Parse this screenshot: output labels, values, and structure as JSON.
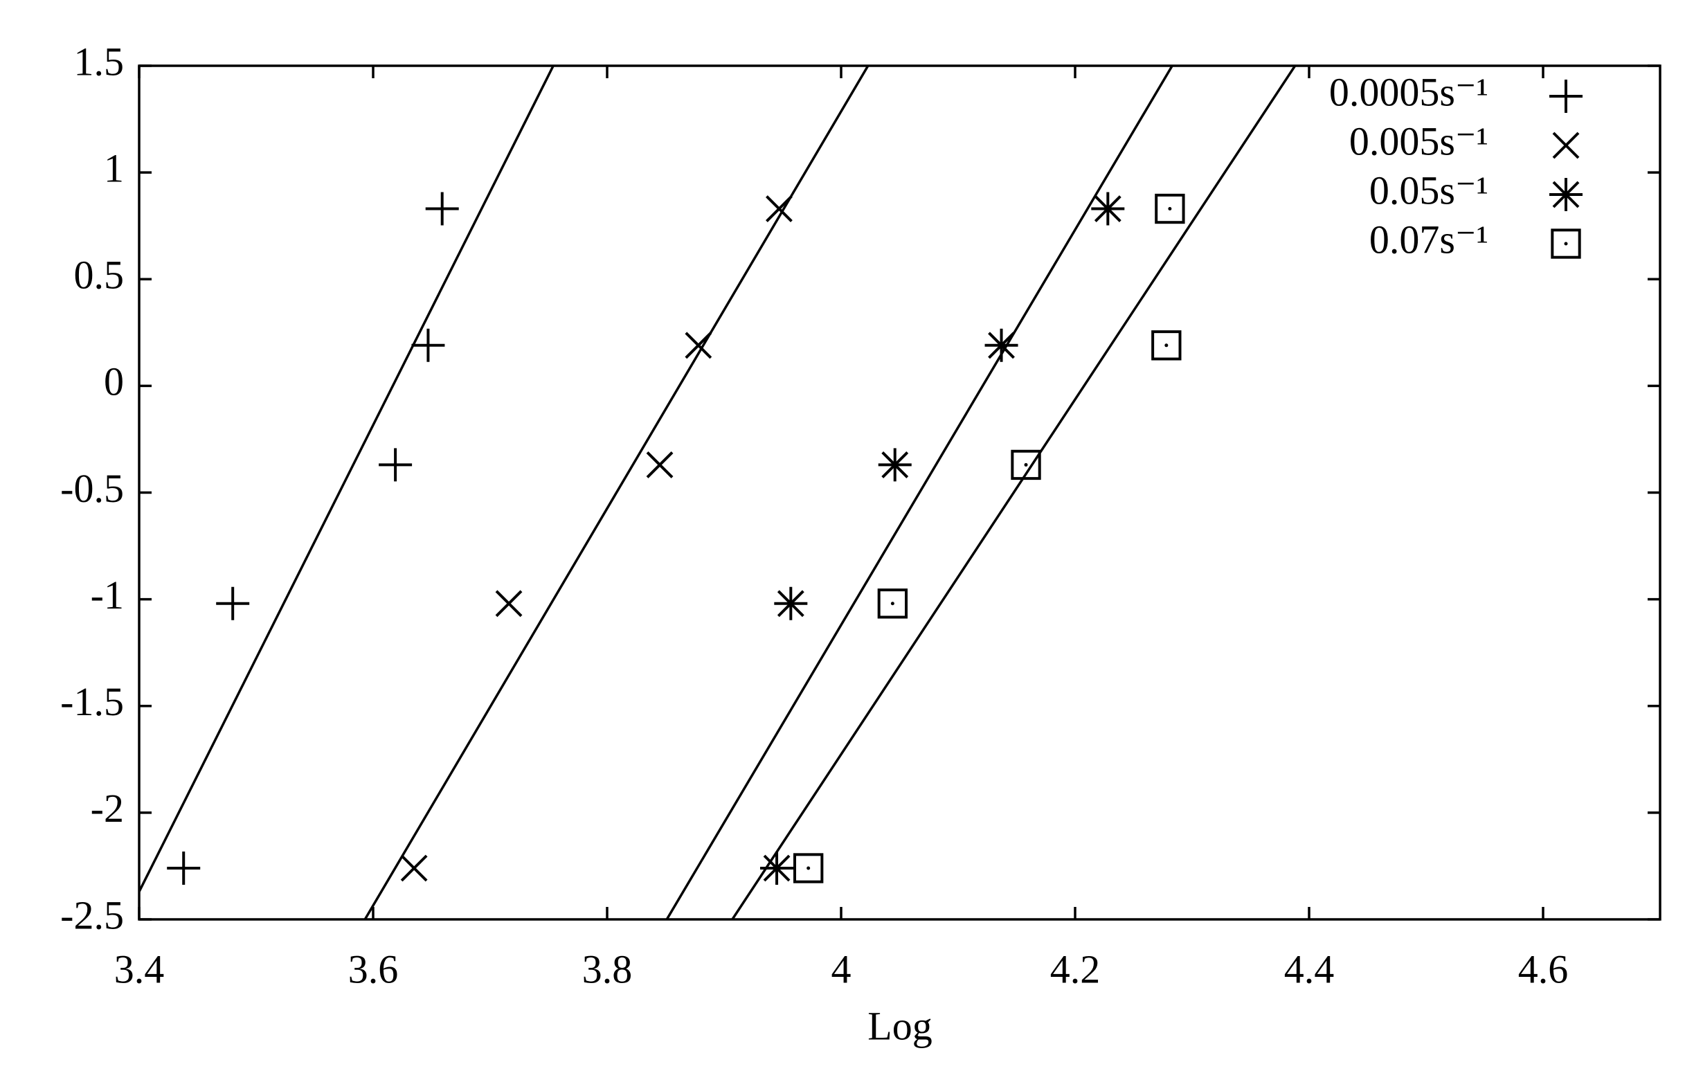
{
  "chart_data": {
    "type": "scatter",
    "x_label": "Log",
    "xlim": [
      3.4,
      4.7
    ],
    "ylim": [
      -2.5,
      1.5
    ],
    "xticks": [
      3.4,
      3.6,
      3.8,
      4,
      4.2,
      4.4,
      4.6
    ],
    "yticks": [
      1.5,
      1,
      0.5,
      0,
      -0.5,
      -1,
      -1.5,
      -2,
      -2.5
    ],
    "legend": "top-right",
    "series": [
      {
        "name": "0.0005s⁻¹",
        "marker": "plus",
        "color": "#000000",
        "x": [
          3.438,
          3.48,
          3.619,
          3.647,
          3.659
        ],
        "values": [
          -2.26,
          -1.02,
          -0.37,
          0.19,
          0.83
        ],
        "fit": {
          "x": [
            3.4,
            3.754
          ],
          "y": [
            -2.37,
            1.5
          ]
        }
      },
      {
        "name": "0.005s⁻¹",
        "marker": "cross",
        "color": "#000000",
        "x": [
          3.635,
          3.716,
          3.845,
          3.878,
          3.947
        ],
        "values": [
          -2.26,
          -1.02,
          -0.37,
          0.19,
          0.83
        ],
        "fit": {
          "x": [
            3.593,
            4.023
          ],
          "y": [
            -2.5,
            1.5
          ]
        }
      },
      {
        "name": "0.05s⁻¹",
        "marker": "star",
        "color": "#000000",
        "x": [
          3.945,
          3.957,
          4.046,
          4.137,
          4.228
        ],
        "values": [
          -2.26,
          -1.02,
          -0.37,
          0.19,
          0.83
        ],
        "fit": {
          "x": [
            3.851,
            4.283
          ],
          "y": [
            -2.5,
            1.5
          ]
        }
      },
      {
        "name": "0.07s⁻¹",
        "marker": "square",
        "color": "#000000",
        "x": [
          3.972,
          4.044,
          4.158,
          4.278,
          4.281
        ],
        "values": [
          -2.26,
          -1.02,
          -0.37,
          0.19,
          0.83
        ],
        "fit": {
          "x": [
            3.907,
            4.388
          ],
          "y": [
            -2.5,
            1.5
          ]
        }
      }
    ]
  }
}
